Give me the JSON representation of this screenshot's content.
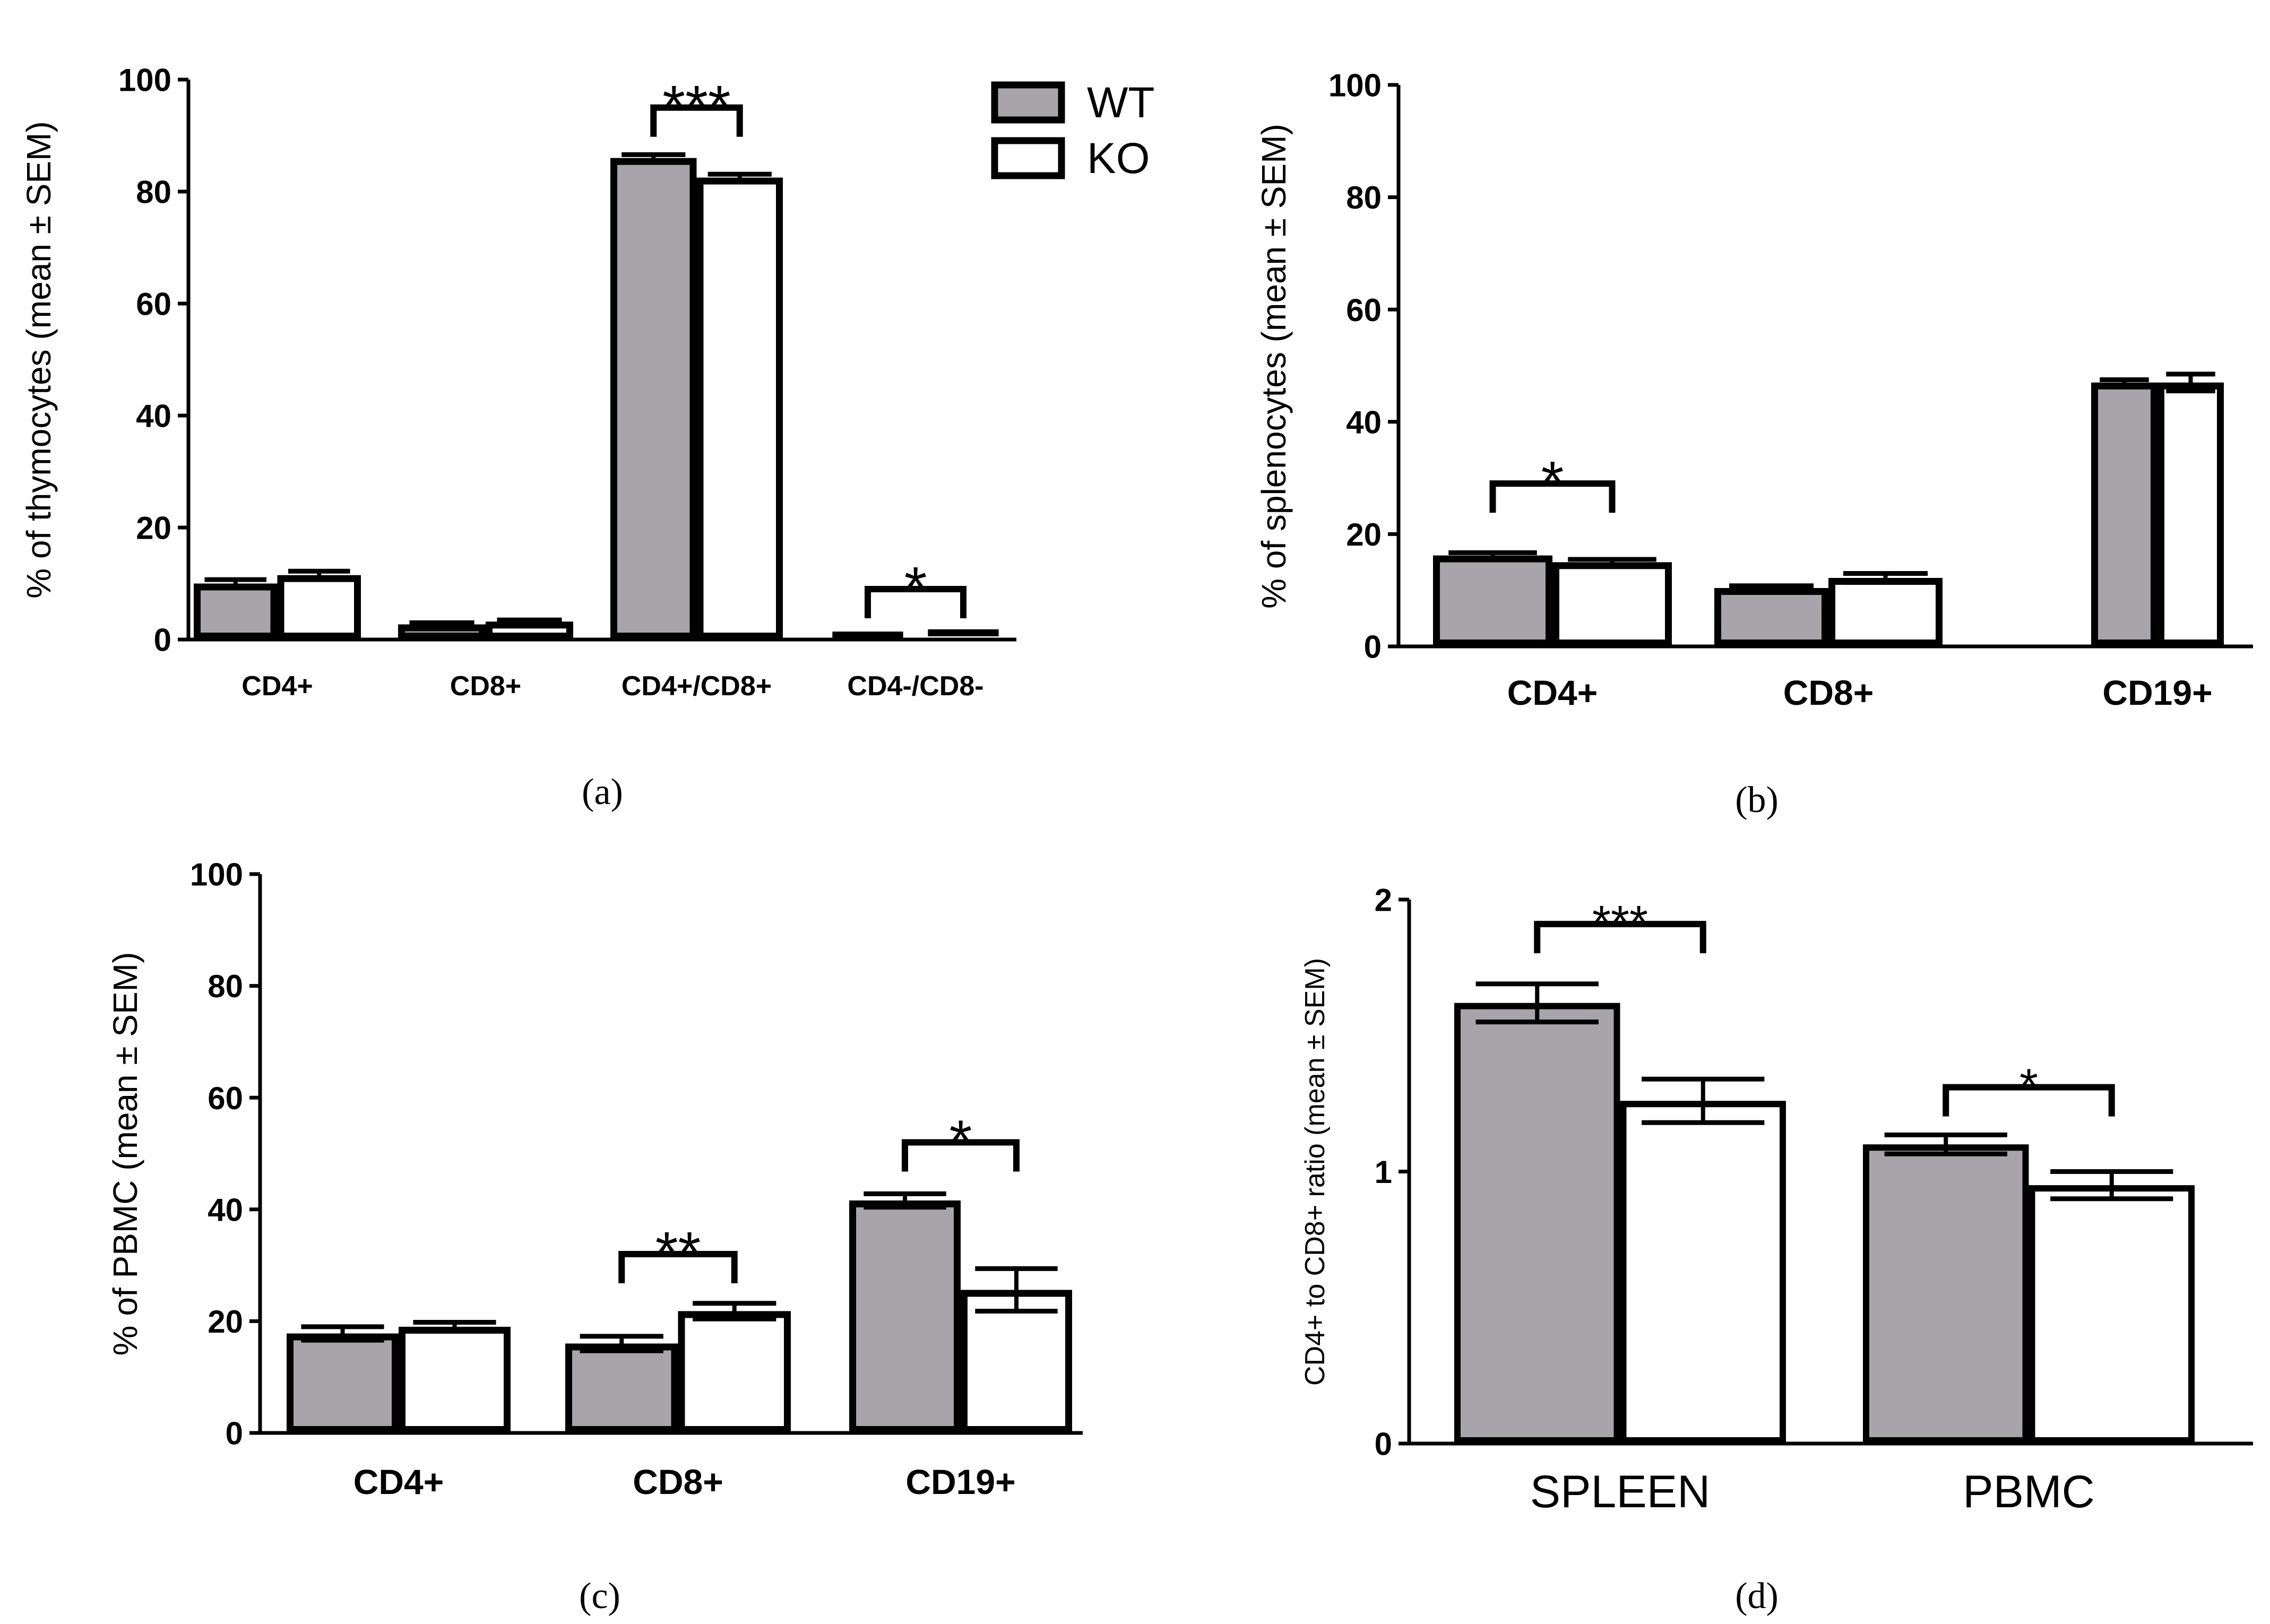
{
  "colors": {
    "wt": "#a7a5aa",
    "ko": "#ffffff",
    "stroke": "#000000"
  },
  "legend": {
    "items": [
      {
        "label": "WT",
        "series": "wt"
      },
      {
        "label": "KO",
        "series": "ko"
      }
    ]
  },
  "chart_data": [
    {
      "id": "a",
      "type": "bar",
      "caption": "(a)",
      "title": "",
      "ylabel": "% of thymocytes (mean ± SEM)",
      "xlabel": "",
      "ylim": [
        0,
        100
      ],
      "yticks": [
        0,
        20,
        40,
        60,
        80,
        100
      ],
      "categories": [
        "CD4+",
        "CD8+",
        "CD4+/CD8+",
        "CD4-/CD8-"
      ],
      "series": [
        {
          "name": "WT",
          "key": "wt",
          "values": [
            10,
            2.7,
            86,
            0.8
          ],
          "sem": [
            0.7,
            0.3,
            0.6,
            0.2
          ]
        },
        {
          "name": "KO",
          "key": "ko",
          "values": [
            11.5,
            3.2,
            82.5,
            1.2
          ],
          "sem": [
            0.7,
            0.3,
            0.6,
            0.2
          ]
        }
      ],
      "significance": [
        {
          "category": 2,
          "label": "***",
          "y": 95
        },
        {
          "category": 3,
          "label": "*",
          "y": 9
        }
      ],
      "legend_position": "top-right"
    },
    {
      "id": "b",
      "type": "bar",
      "caption": "(b)",
      "title": "",
      "ylabel": "% of splenocytes (mean ± SEM)",
      "xlabel": "",
      "ylim": [
        0,
        100
      ],
      "yticks": [
        0,
        20,
        40,
        60,
        80,
        100
      ],
      "categories": [
        "CD4+",
        "CD8+",
        "CD19+"
      ],
      "series": [
        {
          "name": "WT",
          "key": "wt",
          "values": [
            16.2,
            10.4,
            47
          ],
          "sem": [
            0.5,
            0.4,
            0.5
          ]
        },
        {
          "name": "KO",
          "key": "ko",
          "values": [
            15,
            12.2,
            47
          ],
          "sem": [
            0.5,
            0.8,
            1.5
          ]
        }
      ],
      "significance": [
        {
          "category": 0,
          "label": "*",
          "y": 29
        }
      ]
    },
    {
      "id": "c",
      "type": "bar",
      "caption": "(c)",
      "title": "",
      "ylabel": "% of PBMC (mean ± SEM)",
      "xlabel": "",
      "ylim": [
        0,
        100
      ],
      "yticks": [
        0,
        20,
        40,
        60,
        80,
        100
      ],
      "categories": [
        "CD4+",
        "CD8+",
        "CD19+"
      ],
      "series": [
        {
          "name": "WT",
          "key": "wt",
          "values": [
            17.8,
            16,
            41.6
          ],
          "sem": [
            1.2,
            1.3,
            1.2
          ]
        },
        {
          "name": "KO",
          "key": "ko",
          "values": [
            19,
            21.8,
            25.6
          ],
          "sem": [
            0.8,
            1.4,
            3.8
          ]
        }
      ],
      "significance": [
        {
          "category": 1,
          "label": "**",
          "y": 32
        },
        {
          "category": 2,
          "label": "*",
          "y": 52
        }
      ]
    },
    {
      "id": "d",
      "type": "bar",
      "caption": "(d)",
      "title": "",
      "ylabel": "CD4+ to CD8+ ratio (mean ± SEM)",
      "xlabel": "",
      "ylim": [
        0,
        2
      ],
      "yticks": [
        0,
        1,
        2
      ],
      "categories": [
        "SPLEEN",
        "PBMC"
      ],
      "series": [
        {
          "name": "WT",
          "key": "wt",
          "values": [
            1.62,
            1.1
          ],
          "sem": [
            0.07,
            0.035
          ]
        },
        {
          "name": "KO",
          "key": "ko",
          "values": [
            1.26,
            0.95
          ],
          "sem": [
            0.08,
            0.05
          ]
        }
      ],
      "significance": [
        {
          "category": 0,
          "label": "***",
          "y": 1.91
        },
        {
          "category": 1,
          "label": "*",
          "y": 1.31
        }
      ]
    }
  ]
}
